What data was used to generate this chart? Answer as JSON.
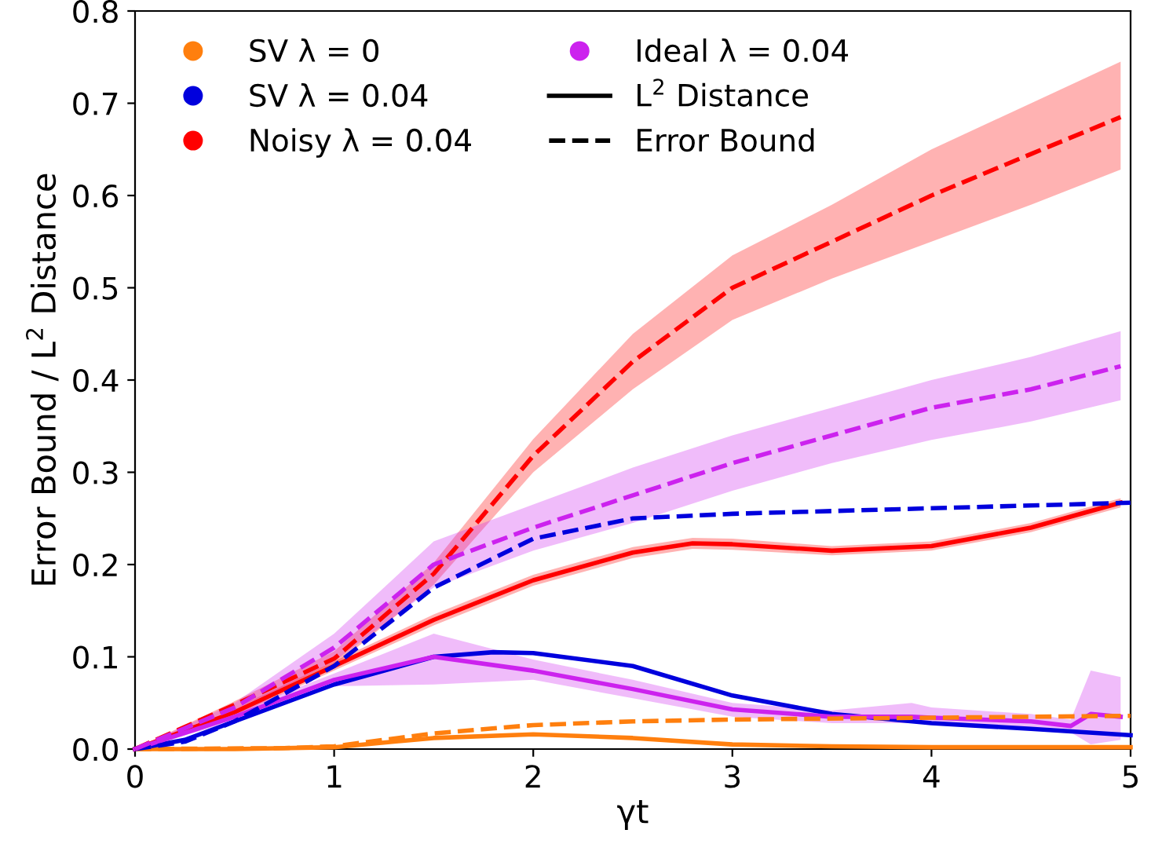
{
  "chart_data": {
    "type": "line",
    "xlabel": "γt",
    "ylabel": "Error Bound / L$^{2}$ Distance",
    "xlim": [
      0,
      5
    ],
    "ylim": [
      0,
      0.8
    ],
    "xticks": [
      0,
      1,
      2,
      3,
      4,
      5
    ],
    "yticks": [
      {
        "value": 0,
        "label": "0.0"
      },
      {
        "value": 0.1,
        "label": "0.1"
      },
      {
        "value": 0.2,
        "label": "0.2"
      },
      {
        "value": 0.3,
        "label": "0.3"
      },
      {
        "value": 0.4,
        "label": "0.4"
      },
      {
        "value": 0.5,
        "label": "0.5"
      },
      {
        "value": 0.6,
        "label": "0.6"
      },
      {
        "value": 0.7,
        "label": "0.7"
      },
      {
        "value": 0.8,
        "label": "0.8"
      }
    ],
    "grid": false,
    "legend": "top left",
    "marker": "none",
    "series": [
      {
        "name": "SV λ = 0",
        "color": "#ff7f0e",
        "line_style": "solid",
        "x": [
          0,
          0.5,
          1,
          1.5,
          2,
          2.5,
          3,
          3.5,
          4,
          4.5,
          5
        ],
        "values": [
          0,
          0,
          0.002,
          0.012,
          0.016,
          0.012,
          0.005,
          0.003,
          0.002,
          0.002,
          0.002
        ]
      },
      {
        "name": "SV λ = 0.04",
        "color": "#0000dd",
        "line_style": "solid",
        "x": [
          0,
          0.25,
          0.5,
          1,
          1.5,
          1.8,
          2,
          2.5,
          3,
          3.5,
          4,
          4.5,
          5
        ],
        "values": [
          0,
          0.01,
          0.03,
          0.07,
          0.1,
          0.105,
          0.104,
          0.09,
          0.058,
          0.038,
          0.028,
          0.022,
          0.015
        ]
      },
      {
        "name": "Noisy λ = 0.04",
        "color": "#ff0000",
        "line_style": "solid",
        "x": [
          0,
          0.5,
          1,
          1.5,
          2,
          2.5,
          2.8,
          3,
          3.5,
          4,
          4.5,
          4.95
        ],
        "values": [
          0,
          0.04,
          0.09,
          0.14,
          0.183,
          0.213,
          0.223,
          0.222,
          0.215,
          0.22,
          0.24,
          0.267
        ],
        "lower": [
          0,
          0.036,
          0.085,
          0.134,
          0.177,
          0.207,
          0.217,
          0.216,
          0.21,
          0.215,
          0.235,
          0.262
        ],
        "upper": [
          0,
          0.044,
          0.095,
          0.146,
          0.189,
          0.219,
          0.229,
          0.228,
          0.22,
          0.225,
          0.245,
          0.272
        ]
      },
      {
        "name": "Ideal λ = 0.04",
        "color": "#cc22ee",
        "line_style": "solid",
        "x": [
          0,
          0.5,
          1,
          1.5,
          2,
          2.5,
          3,
          3.5,
          3.9,
          4,
          4.5,
          4.7,
          4.8,
          4.95
        ],
        "values": [
          0,
          0.035,
          0.075,
          0.1,
          0.085,
          0.065,
          0.043,
          0.035,
          0.035,
          0.034,
          0.03,
          0.025,
          0.038,
          0.035
        ],
        "lower": [
          0,
          0.03,
          0.068,
          0.07,
          0.075,
          0.055,
          0.035,
          0.028,
          0.028,
          0.028,
          0.022,
          0.018,
          0.005,
          0.01
        ],
        "upper": [
          0,
          0.04,
          0.082,
          0.125,
          0.097,
          0.075,
          0.05,
          0.042,
          0.05,
          0.045,
          0.038,
          0.032,
          0.085,
          0.078
        ]
      },
      {
        "color": "#ff7f0e",
        "line_style": "dashed",
        "x": [
          0,
          0.75,
          1,
          1.5,
          2,
          2.5,
          3,
          4,
          5
        ],
        "values": [
          0,
          0.001,
          0.003,
          0.017,
          0.026,
          0.03,
          0.032,
          0.034,
          0.036
        ]
      },
      {
        "color": "#0000dd",
        "line_style": "dashed",
        "x": [
          0,
          0.25,
          0.5,
          1,
          1.5,
          2,
          2.5,
          3,
          3.5,
          4,
          4.5,
          5
        ],
        "values": [
          0,
          0.008,
          0.03,
          0.09,
          0.175,
          0.228,
          0.25,
          0.255,
          0.258,
          0.261,
          0.264,
          0.267
        ]
      },
      {
        "color": "#ff0000",
        "line_style": "dashed",
        "x": [
          0,
          0.5,
          1,
          1.5,
          2,
          2.5,
          3,
          3.5,
          4,
          4.5,
          4.95
        ],
        "values": [
          0,
          0.048,
          0.098,
          0.19,
          0.318,
          0.42,
          0.5,
          0.55,
          0.6,
          0.645,
          0.685
        ],
        "lower": [
          0,
          0.044,
          0.09,
          0.178,
          0.3,
          0.39,
          0.465,
          0.51,
          0.55,
          0.59,
          0.628
        ],
        "upper": [
          0,
          0.052,
          0.106,
          0.202,
          0.336,
          0.45,
          0.535,
          0.59,
          0.65,
          0.7,
          0.745
        ]
      },
      {
        "color": "#cc22ee",
        "line_style": "dashed",
        "x": [
          0,
          0.5,
          1,
          1.5,
          2,
          2.5,
          3,
          3.5,
          4,
          4.5,
          4.95
        ],
        "values": [
          0,
          0.045,
          0.11,
          0.2,
          0.24,
          0.275,
          0.31,
          0.34,
          0.37,
          0.39,
          0.415
        ],
        "lower": [
          0,
          0.04,
          0.095,
          0.175,
          0.215,
          0.245,
          0.28,
          0.31,
          0.335,
          0.355,
          0.378
        ],
        "upper": [
          0,
          0.05,
          0.125,
          0.225,
          0.265,
          0.305,
          0.34,
          0.37,
          0.4,
          0.425,
          0.453
        ]
      },
      {
        "name": "L$^{2}$ Distance",
        "color": "#000000",
        "line_style": "solid"
      },
      {
        "name": "Error Bound",
        "color": "#000000",
        "line_style": "dashed"
      }
    ]
  }
}
